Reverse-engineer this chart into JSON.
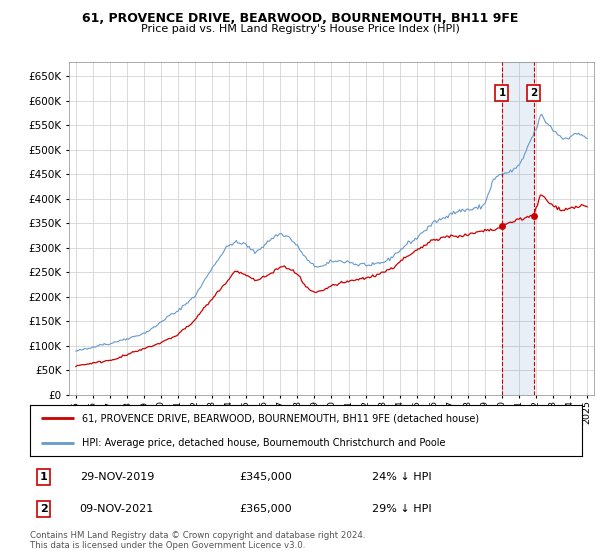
{
  "title": "61, PROVENCE DRIVE, BEARWOOD, BOURNEMOUTH, BH11 9FE",
  "subtitle": "Price paid vs. HM Land Registry's House Price Index (HPI)",
  "legend_label_red": "61, PROVENCE DRIVE, BEARWOOD, BOURNEMOUTH, BH11 9FE (detached house)",
  "legend_label_blue": "HPI: Average price, detached house, Bournemouth Christchurch and Poole",
  "footnote": "Contains HM Land Registry data © Crown copyright and database right 2024.\nThis data is licensed under the Open Government Licence v3.0.",
  "transaction1_date": "29-NOV-2019",
  "transaction1_price": "£345,000",
  "transaction1_hpi": "24% ↓ HPI",
  "transaction2_date": "09-NOV-2021",
  "transaction2_price": "£365,000",
  "transaction2_hpi": "29% ↓ HPI",
  "ylim_max": 680000,
  "red_color": "#cc0000",
  "blue_color": "#6699cc",
  "background_color": "#ffffff",
  "grid_color": "#cccccc",
  "marker1_year": 2020.0,
  "marker1_value": 345000,
  "marker2_year": 2021.87,
  "marker2_value": 365000,
  "shade_color": "#ddeeff"
}
